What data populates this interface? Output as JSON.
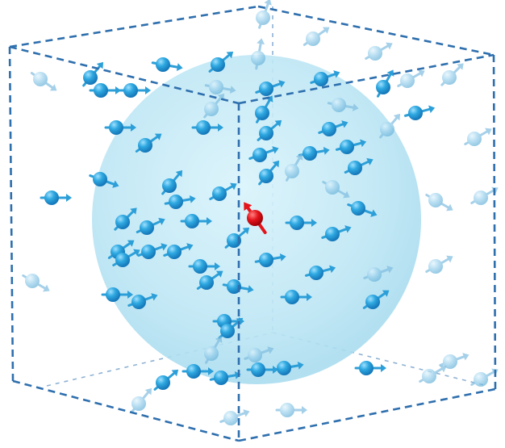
{
  "diagram": {
    "type": "3d-spin-ensemble",
    "box": {
      "style": "dashed-cube",
      "color": "#2e6fae"
    },
    "sphere": {
      "color": "#bfe6f5"
    },
    "spin_color": "#2aa0d8",
    "central_spin_color": "#e3141b",
    "spin_count": 80
  }
}
